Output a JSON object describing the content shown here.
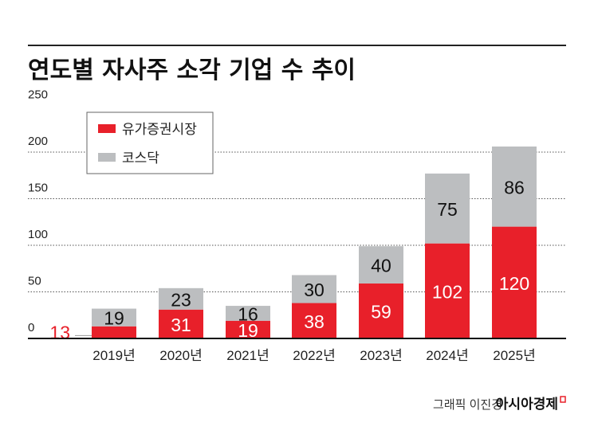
{
  "chart_data": {
    "type": "bar",
    "stacked": true,
    "title": "연도별 자사주 소각 기업 수 추이",
    "categories": [
      "2019년",
      "2020년",
      "2021년",
      "2022년",
      "2023년",
      "2024년",
      "2025년"
    ],
    "series": [
      {
        "name": "유가증권시장",
        "values": [
          13,
          31,
          19,
          38,
          59,
          102,
          120
        ],
        "color": "#e8202a"
      },
      {
        "name": "코스닥",
        "values": [
          19,
          23,
          16,
          30,
          40,
          75,
          86
        ],
        "color": "#bcbec0"
      }
    ],
    "ylim": [
      0,
      250
    ],
    "yticks": [
      "0",
      "50",
      "100",
      "150",
      "200",
      "250"
    ],
    "grid": "dotted horizontal",
    "legend": "top-left"
  },
  "credit": {
    "author": "그래픽 이진경",
    "brand": "아시아경제"
  }
}
